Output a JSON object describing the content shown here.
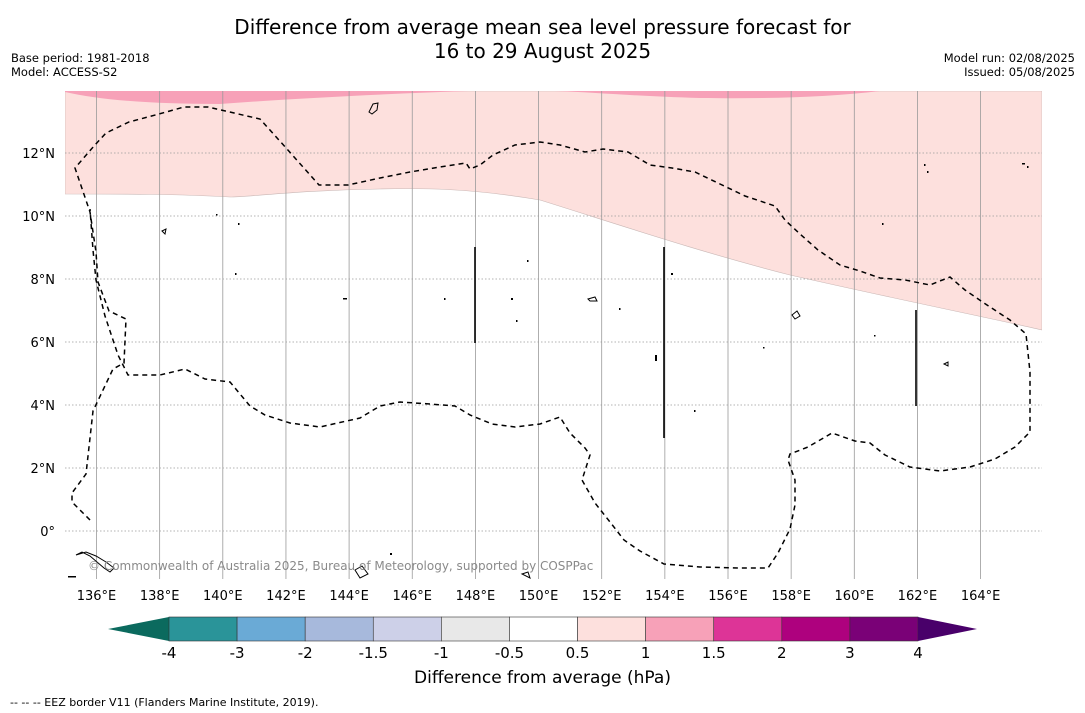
{
  "title": {
    "line1": "Difference from average mean sea level pressure forecast for",
    "line2": "16 to 29 August 2025"
  },
  "meta_left": {
    "base_period": "Base period: 1981-2018",
    "model": "Model: ACCESS-S2"
  },
  "meta_right": {
    "model_run": "Model run: 02/08/2025",
    "issued": "Issued: 05/08/2025"
  },
  "map": {
    "x_ticks": [
      "136°E",
      "138°E",
      "140°E",
      "142°E",
      "144°E",
      "146°E",
      "148°E",
      "150°E",
      "152°E",
      "154°E",
      "156°E",
      "158°E",
      "160°E",
      "162°E",
      "164°E"
    ],
    "y_ticks": [
      "12°N",
      "10°N",
      "8°N",
      "6°N",
      "4°N",
      "2°N",
      "0°"
    ],
    "copyright": "© Commonwealth of Australia 2025, Bureau of Meteorology, supported by COSPPac",
    "colors": {
      "light_pink": "#fde0dd",
      "mid_pink": "#f7a1b8",
      "eez_border": "#000000",
      "gridline": "#9a9a9a"
    }
  },
  "colorbar": {
    "title": "Difference from average (hPa)",
    "labels": [
      "-4",
      "-3",
      "-2",
      "-1.5",
      "-1",
      "-0.5",
      "0.5",
      "1",
      "1.5",
      "2",
      "3",
      "4"
    ],
    "colors": [
      "#1a7f7a",
      "#2a9499",
      "#6aaad6",
      "#a7b9dc",
      "#cdd0e8",
      "#e8e8e8",
      "#ffffff",
      "#fde0dd",
      "#f7a1b8",
      "#dd3497",
      "#ae017e",
      "#7a0177",
      "#49006a"
    ],
    "under_color": "#0b6a5e",
    "over_color": "#49006a"
  },
  "footer": "--  --  -- EEZ border V11 (Flanders Marine Institute, 2019)."
}
